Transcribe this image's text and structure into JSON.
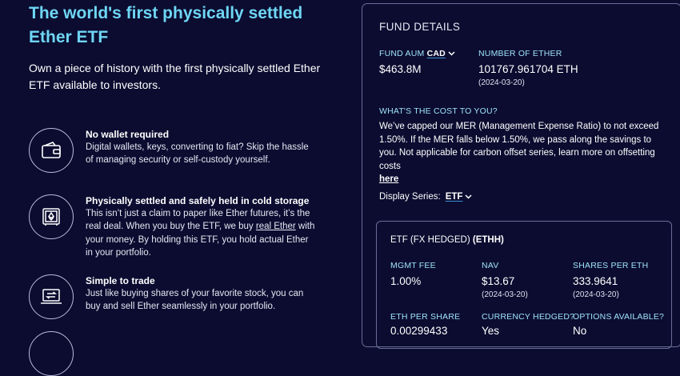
{
  "hero": {
    "title": "The world's first physically settled Ether ETF",
    "subtitle": "Own a piece of history with the first physically settled Ether ETF available to investors."
  },
  "features": [
    {
      "icon": "wallet-icon",
      "title": "No wallet required",
      "desc": "Digital wallets, keys, converting to fiat? Skip the hassle of managing security or self-custody yourself."
    },
    {
      "icon": "safe-vault-icon",
      "title": "Physically settled and safely held in cold storage",
      "desc_part1": "This isn’t just a claim to paper like Ether futures, it’s the real deal. When you buy the ETF, we buy ",
      "desc_link": "real Ether",
      "desc_part2": " with your money. By holding this ETF, you hold actual Ether in your portfolio."
    },
    {
      "icon": "laptop-exchange-icon",
      "title": "Simple to trade",
      "desc": "Just like buying shares of your favorite stock, you can buy and sell Ether seamlessly in your portfolio."
    }
  ],
  "fund_details": {
    "heading": "FUND DETAILS",
    "aum_label": "FUND AUM",
    "aum_currency": "CAD",
    "aum_value": "$463.8M",
    "ether_label": "NUMBER OF ETHER",
    "ether_value": "101767.961704 ETH",
    "ether_date": "(2024-03-20)",
    "cost_label": "WHAT'S THE COST TO YOU?",
    "cost_text": "We’ve capped our MER (Management Expense Ratio) to not exceed 1.50%. If the MER falls below 1.50%, we pass along the savings to you. Not applicable for carbon offset series, learn more on offsetting costs",
    "cost_link": "here",
    "series_label": "Display Series:",
    "series_value": "ETF"
  },
  "series_card": {
    "title_prefix": "ETF (FX HEDGED)",
    "ticker": "(ETHH)",
    "mgmt_fee_label": "MGMT FEE",
    "mgmt_fee_value": "1.00%",
    "nav_label": "NAV",
    "nav_value": "$13.67",
    "nav_date": "(2024-03-20)",
    "shares_per_eth_label": "SHARES PER ETH",
    "shares_per_eth_value": "333.9641",
    "shares_per_eth_date": "(2024-03-20)",
    "eth_per_share_label": "ETH PER SHARE",
    "eth_per_share_value": "0.00299433",
    "currency_hedged_label": "CURRENCY HEDGED?",
    "currency_hedged_value": "Yes",
    "options_label": "OPTIONS AVAILABLE?",
    "options_value": "No"
  },
  "colors": {
    "background": "#0b0c30",
    "accent_title": "#6fd6f4",
    "label": "#9fe2f8",
    "border": "#6b6d98"
  }
}
